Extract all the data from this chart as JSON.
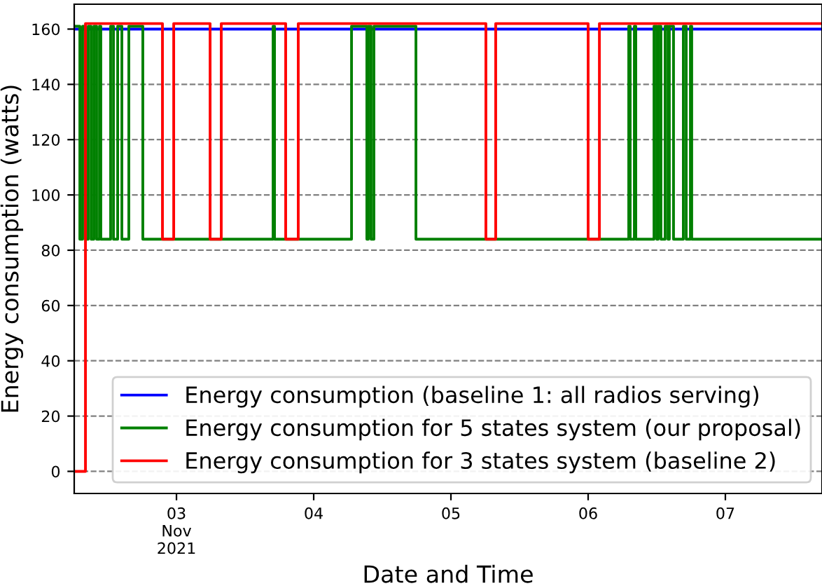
{
  "chart_data": {
    "type": "step",
    "xlabel": "Date and Time",
    "ylabel": "Energy consumption (watts)",
    "xlim": [
      "2021-11-02T06:07",
      "2021-11-07T16:54"
    ],
    "ylim": [
      -8,
      169
    ],
    "xticks": [
      {
        "value": "2021-11-03",
        "label": "03\nNov\n2021"
      },
      {
        "value": "2021-11-04",
        "label": "04"
      },
      {
        "value": "2021-11-05",
        "label": "05"
      },
      {
        "value": "2021-11-06",
        "label": "06"
      },
      {
        "value": "2021-11-07",
        "label": "07"
      }
    ],
    "yticks": [
      0,
      20,
      40,
      60,
      80,
      100,
      120,
      140,
      160
    ],
    "grid": "y",
    "legend": "bottom right",
    "series": [
      {
        "name": "Energy consumption (baseline 1: all radios serving)",
        "color": "#0000ff",
        "x": [
          "2021-11-02T06:07",
          "2021-11-07T16:54"
        ],
        "values": [
          160,
          160
        ]
      },
      {
        "name": "Energy consumption for 5 states system (our proposal)",
        "color": "#008000",
        "x": [
          "2021-11-02T06:07",
          "2021-11-02T07:06",
          "2021-11-02T07:35",
          "2021-11-02T08:05",
          "2021-11-02T08:34",
          "2021-11-02T09:04",
          "2021-11-02T09:33",
          "2021-11-02T10:02",
          "2021-11-02T10:32",
          "2021-11-02T10:46",
          "2021-11-02T12:29",
          "2021-11-02T12:59",
          "2021-11-02T13:43",
          "2021-11-02T14:27",
          "2021-11-02T15:40",
          "2021-11-02T18:07",
          "2021-11-03T16:54",
          "2021-11-03T17:09",
          "2021-11-04T06:37",
          "2021-11-04T09:18",
          "2021-11-04T09:33",
          "2021-11-04T10:02",
          "2021-11-04T10:32",
          "2021-11-04T17:53",
          "2021-11-06T07:06",
          "2021-11-06T07:21",
          "2021-11-06T08:05",
          "2021-11-06T08:20",
          "2021-11-06T11:31",
          "2021-11-06T12:00",
          "2021-11-06T12:15",
          "2021-11-06T12:44",
          "2021-11-06T13:28",
          "2021-11-06T13:58",
          "2021-11-06T14:12",
          "2021-11-06T14:56",
          "2021-11-06T16:39",
          "2021-11-06T17:09",
          "2021-11-06T17:53",
          "2021-11-06T18:07",
          "2021-11-07T16:54"
        ],
        "values": [
          161,
          84,
          161,
          84,
          161,
          84,
          161,
          84,
          161,
          84,
          161,
          84,
          161,
          84,
          161,
          84,
          161,
          84,
          161,
          84,
          161,
          84,
          161,
          84,
          161,
          84,
          161,
          84,
          161,
          84,
          161,
          84,
          161,
          84,
          161,
          84,
          161,
          84,
          161,
          84,
          84
        ]
      },
      {
        "name": "Energy consumption for 3 states system (baseline 2)",
        "color": "#ff0000",
        "x": [
          "2021-11-02T06:07",
          "2021-11-02T08:05",
          "2021-11-02T21:33",
          "2021-11-02T23:31",
          "2021-11-03T05:53",
          "2021-11-03T07:50",
          "2021-11-03T19:06",
          "2021-11-03T21:18",
          "2021-11-05T06:07",
          "2021-11-05T07:50",
          "2021-11-06T00:00",
          "2021-11-06T01:58",
          "2021-11-07T16:54"
        ],
        "values": [
          0,
          162,
          84,
          162,
          84,
          162,
          84,
          162,
          84,
          162,
          84,
          162,
          162
        ]
      }
    ]
  }
}
